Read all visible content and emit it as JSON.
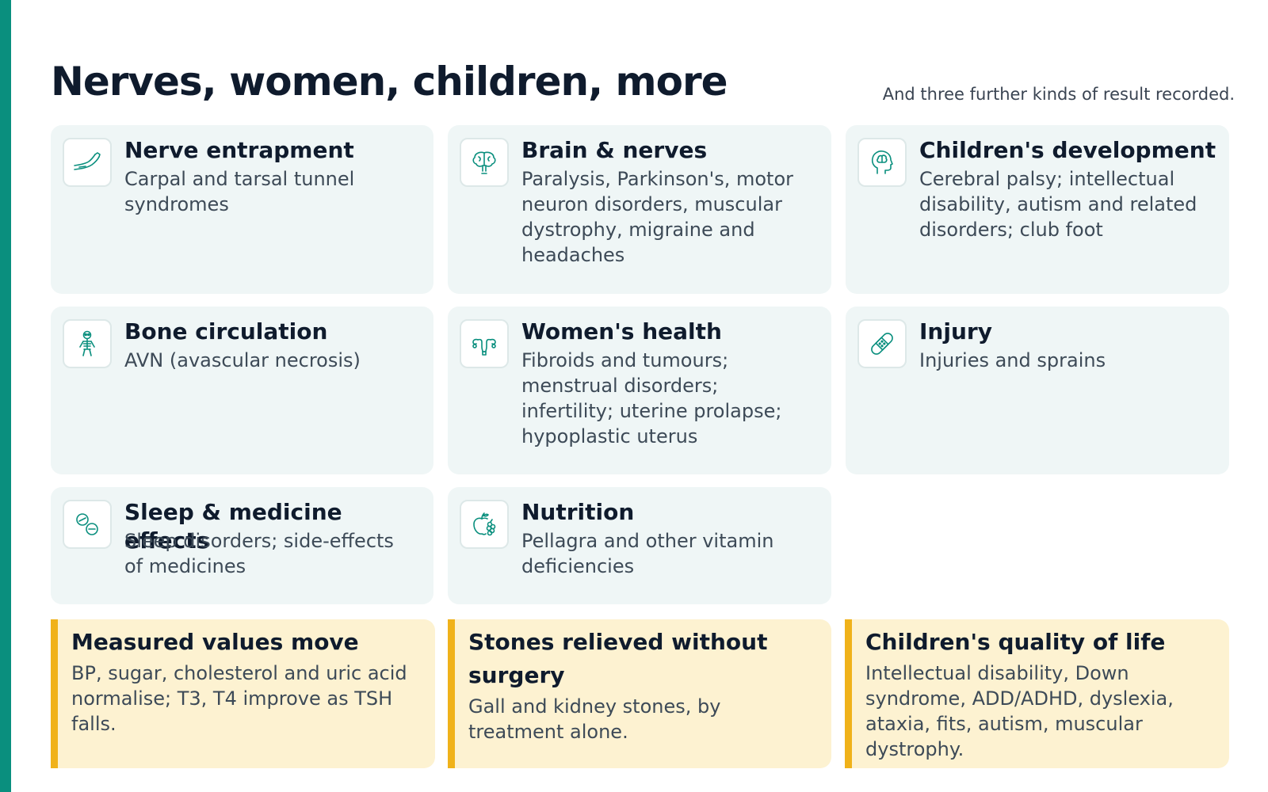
{
  "header": {
    "title": "Nerves, women, children, more",
    "subtitle": "And three further kinds of result recorded."
  },
  "colors": {
    "accent": "#0a8f7e",
    "card_bg": "#eff6f6",
    "highlight_bg": "#fdf2d1",
    "highlight_border": "#f0b21a"
  },
  "cards": [
    {
      "icon": "arm-nerve-icon",
      "title": "Nerve entrapment",
      "desc": "Carpal and tarsal tunnel syndromes"
    },
    {
      "icon": "brain-icon",
      "title": "Brain & nerves",
      "desc": "Paralysis, Parkinson's, motor neuron disorders, muscular dystrophy, migraine and headaches"
    },
    {
      "icon": "head-brain-icon",
      "title": "Children's development",
      "desc": "Cerebral palsy; intellectual disability, autism and related disorders; club foot"
    },
    {
      "icon": "skeleton-icon",
      "title": "Bone circulation",
      "desc": "AVN (avascular necrosis)"
    },
    {
      "icon": "uterus-icon",
      "title": "Women's health",
      "desc": "Fibroids and tumours; menstrual disorders; infertility; uterine prolapse; hypoplastic uterus"
    },
    {
      "icon": "bandage-icon",
      "title": "Injury",
      "desc": "Injuries and sprains"
    },
    {
      "icon": "pills-icon",
      "title": "Sleep & medicine effects",
      "desc": "Sleep disorders; side-effects of medicines"
    },
    {
      "icon": "fruit-icon",
      "title": "Nutrition",
      "desc": "Pellagra and other vitamin deficiencies"
    }
  ],
  "highlights": [
    {
      "title": "Measured values move",
      "desc": "BP, sugar, cholesterol and uric acid normalise; T3, T4 improve as TSH falls."
    },
    {
      "title": "Stones relieved without surgery",
      "desc": "Gall and kidney stones, by treatment alone."
    },
    {
      "title": "Children's quality of life",
      "desc": "Intellectual disability, Down syndrome, ADD/ADHD, dyslexia, ataxia, fits, autism, muscular dystrophy."
    }
  ]
}
